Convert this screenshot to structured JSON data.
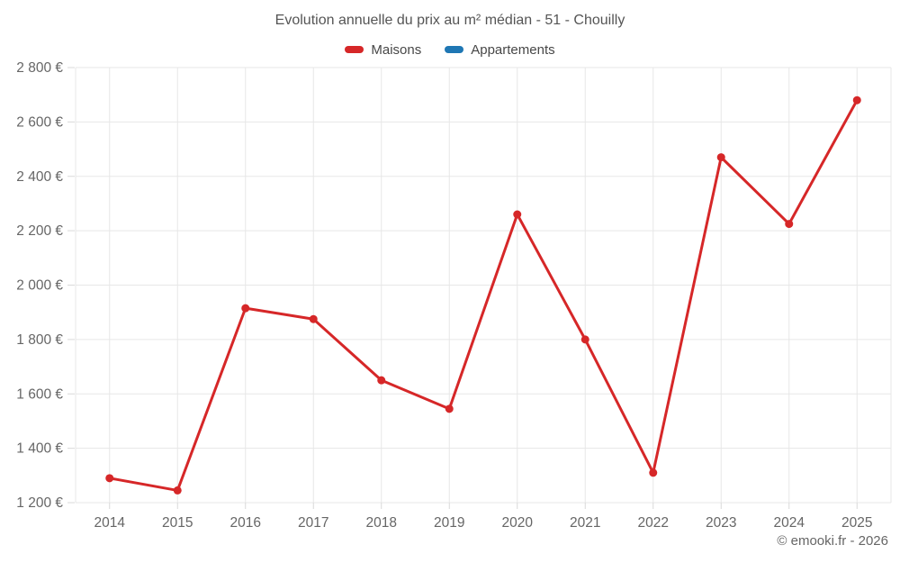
{
  "chart_data": {
    "type": "line",
    "title": "Evolution annuelle du prix au m² médian - 51 - Chouilly",
    "categories": [
      "2014",
      "2015",
      "2016",
      "2017",
      "2018",
      "2019",
      "2020",
      "2021",
      "2022",
      "2023",
      "2024",
      "2025"
    ],
    "series": [
      {
        "name": "Maisons",
        "color": "#d62728",
        "values": [
          1290,
          1245,
          1915,
          1875,
          1650,
          1545,
          2260,
          1800,
          1310,
          2470,
          2225,
          2680
        ]
      },
      {
        "name": "Appartements",
        "color": "#1f77b4",
        "values": []
      }
    ],
    "xlabel": "",
    "ylabel": "",
    "ylim": [
      1200,
      2800
    ],
    "ytick_interval": 200,
    "ytick_labels": [
      "1 200 €",
      "1 400 €",
      "1 600 €",
      "1 800 €",
      "2 000 €",
      "2 200 €",
      "2 400 €",
      "2 600 €",
      "2 800 €"
    ],
    "ytick_suffix": " €",
    "grid": true,
    "legend_position": "top",
    "marker": "circle",
    "style": {
      "background": "#ffffff",
      "grid_color": "#e7e7e7",
      "tick_color": "#d9d9d9",
      "axis_label_color": "#666666",
      "title_color": "#555555",
      "legend_text_color": "#474747"
    }
  },
  "footer": {
    "attribution": "© emooki.fr - 2026"
  }
}
